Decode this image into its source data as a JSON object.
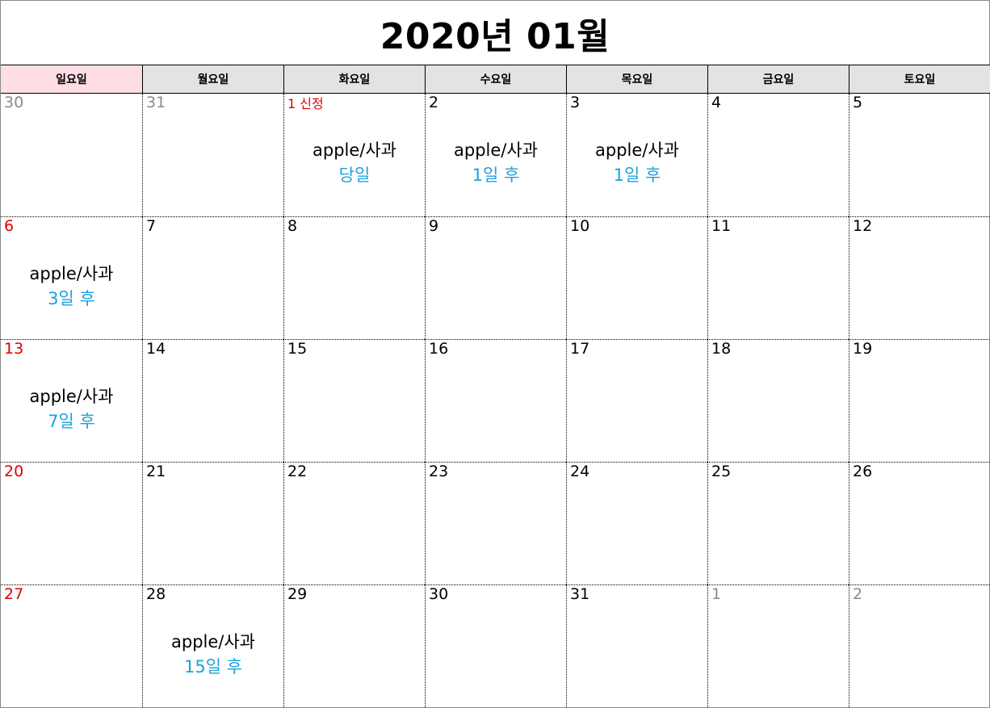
{
  "calendar": {
    "title": "2020년 01월",
    "weekdays": [
      "일요일",
      "월요일",
      "화요일",
      "수요일",
      "목요일",
      "금요일",
      "토요일"
    ],
    "accent_colors": {
      "sunday_header_bg": "#ffdde4",
      "header_bg": "#e3e3e3",
      "sunday_text": "#e00000",
      "other_month_text": "#8a8a8a",
      "event_relative_text": "#1aa2dd"
    },
    "weeks": [
      [
        {
          "date": "30",
          "kind": "other"
        },
        {
          "date": "31",
          "kind": "other"
        },
        {
          "date": "1 신정",
          "kind": "holiday",
          "event": {
            "name": "apple/사과",
            "when": "당일"
          }
        },
        {
          "date": "2",
          "kind": "normal",
          "event": {
            "name": "apple/사과",
            "when": "1일 후"
          }
        },
        {
          "date": "3",
          "kind": "normal",
          "event": {
            "name": "apple/사과",
            "when": "1일 후"
          }
        },
        {
          "date": "4",
          "kind": "normal"
        },
        {
          "date": "5",
          "kind": "normal"
        }
      ],
      [
        {
          "date": "6",
          "kind": "sun",
          "event": {
            "name": "apple/사과",
            "when": "3일 후"
          }
        },
        {
          "date": "7",
          "kind": "normal"
        },
        {
          "date": "8",
          "kind": "normal"
        },
        {
          "date": "9",
          "kind": "normal"
        },
        {
          "date": "10",
          "kind": "normal"
        },
        {
          "date": "11",
          "kind": "normal"
        },
        {
          "date": "12",
          "kind": "normal"
        }
      ],
      [
        {
          "date": "13",
          "kind": "sun",
          "event": {
            "name": "apple/사과",
            "when": "7일 후"
          }
        },
        {
          "date": "14",
          "kind": "normal"
        },
        {
          "date": "15",
          "kind": "normal"
        },
        {
          "date": "16",
          "kind": "normal"
        },
        {
          "date": "17",
          "kind": "normal"
        },
        {
          "date": "18",
          "kind": "normal"
        },
        {
          "date": "19",
          "kind": "normal"
        }
      ],
      [
        {
          "date": "20",
          "kind": "sun"
        },
        {
          "date": "21",
          "kind": "normal"
        },
        {
          "date": "22",
          "kind": "normal"
        },
        {
          "date": "23",
          "kind": "normal"
        },
        {
          "date": "24",
          "kind": "normal"
        },
        {
          "date": "25",
          "kind": "normal"
        },
        {
          "date": "26",
          "kind": "normal"
        }
      ],
      [
        {
          "date": "27",
          "kind": "sun"
        },
        {
          "date": "28",
          "kind": "normal",
          "event": {
            "name": "apple/사과",
            "when": "15일 후"
          }
        },
        {
          "date": "29",
          "kind": "normal"
        },
        {
          "date": "30",
          "kind": "normal"
        },
        {
          "date": "31",
          "kind": "normal"
        },
        {
          "date": "1",
          "kind": "other"
        },
        {
          "date": "2",
          "kind": "other"
        }
      ]
    ]
  }
}
